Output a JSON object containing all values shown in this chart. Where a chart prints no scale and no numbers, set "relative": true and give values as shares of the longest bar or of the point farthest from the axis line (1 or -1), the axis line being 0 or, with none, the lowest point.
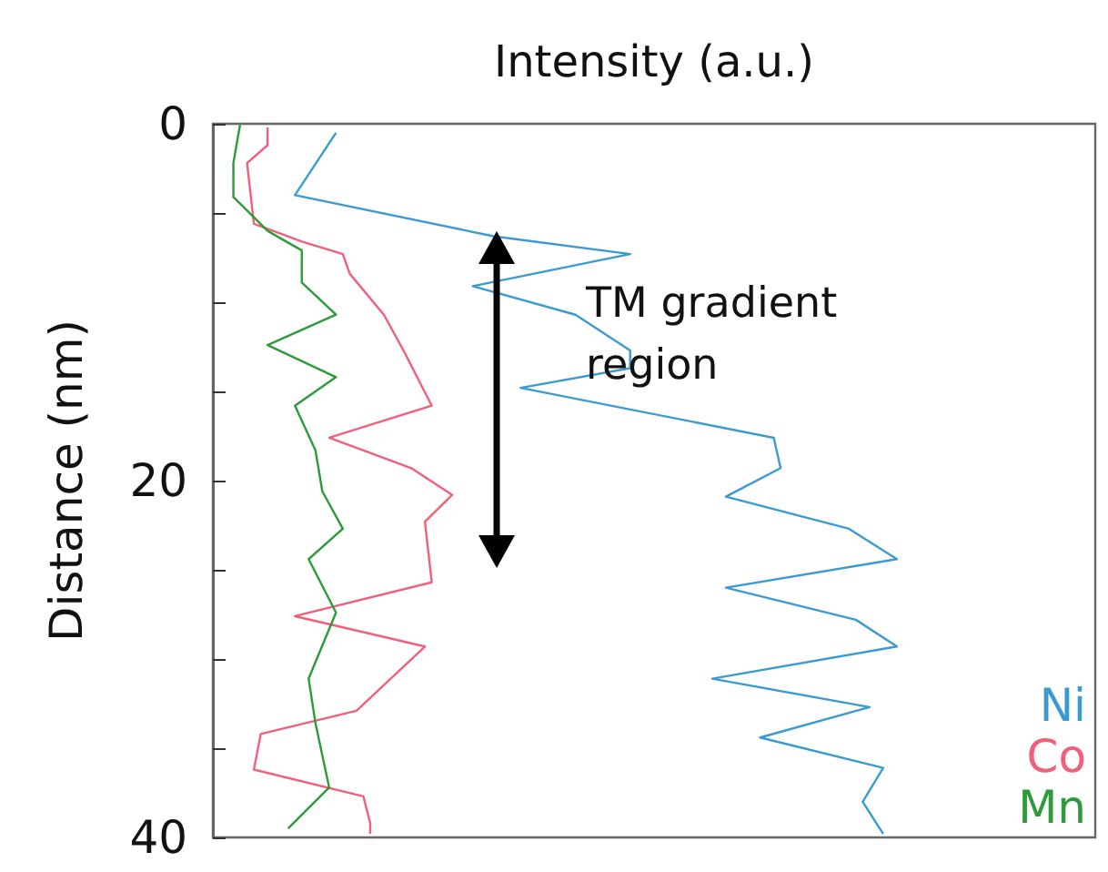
{
  "chart_data": {
    "type": "line",
    "orientation": "horizontal",
    "xlabel": "Intensity (a.u.)",
    "ylabel": "Distance (nm)",
    "relative": true,
    "ylim": [
      40,
      0
    ],
    "yticks": [
      0,
      {
        "value": 5,
        "label": null
      },
      {
        "value": 10,
        "label": null
      },
      {
        "value": 15,
        "label": null
      },
      20,
      {
        "value": 25,
        "label": null
      },
      {
        "value": 30,
        "label": null
      },
      {
        "value": 35,
        "label": null
      },
      40
    ],
    "tick_labels": "y",
    "marker": "none",
    "line_style": "solid",
    "annotations": [
      "TM gradient region"
    ],
    "series": [
      {
        "name": "Ni",
        "color": "#3a9bd0",
        "values": [
          0.18,
          0.12,
          0.41,
          0.61,
          0.38,
          0.53,
          0.61,
          0.61,
          0.45,
          0.82,
          0.83,
          0.75,
          0.93,
          1.0,
          0.75,
          0.94,
          1.0,
          0.73,
          0.96,
          0.8,
          0.98,
          0.95,
          0.98
        ],
        "x": [
          0.5,
          4.0,
          6.3,
          7.3,
          9.1,
          10.7,
          12.7,
          13.7,
          14.8,
          17.6,
          19.3,
          20.9,
          22.7,
          24.4,
          26.0,
          27.8,
          29.3,
          31.1,
          32.7,
          34.4,
          36.1,
          38.0,
          39.8
        ]
      },
      {
        "name": "Co",
        "color": "#f0607a",
        "values": [
          0.08,
          0.08,
          0.05,
          0.06,
          0.13,
          0.19,
          0.2,
          0.25,
          0.28,
          0.32,
          0.17,
          0.29,
          0.35,
          0.31,
          0.32,
          0.12,
          0.31,
          0.21,
          0.07,
          0.06,
          0.22,
          0.23,
          0.23
        ],
        "x": [
          0.2,
          1.2,
          2.2,
          5.6,
          6.6,
          7.3,
          8.4,
          10.7,
          12.8,
          15.8,
          17.6,
          19.3,
          20.8,
          22.3,
          25.7,
          27.6,
          29.3,
          32.9,
          34.2,
          36.2,
          37.7,
          39.2,
          39.8
        ]
      },
      {
        "name": "Mn",
        "color": "#2e9a3a",
        "values": [
          0.04,
          0.03,
          0.03,
          0.08,
          0.13,
          0.13,
          0.18,
          0.08,
          0.18,
          0.12,
          0.15,
          0.16,
          0.19,
          0.14,
          0.18,
          0.14,
          0.15,
          0.17,
          0.11
        ],
        "x": [
          0,
          2.2,
          4.1,
          6.0,
          7.1,
          8.9,
          10.7,
          12.4,
          14.2,
          15.8,
          18.3,
          20.6,
          22.7,
          24.4,
          27.4,
          31.1,
          33.6,
          37.2,
          39.5
        ]
      }
    ]
  }
}
